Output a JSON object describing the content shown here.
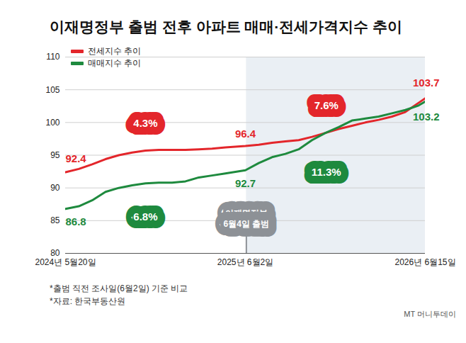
{
  "chart_data": {
    "type": "line",
    "title": "이재명정부 출범 전후 아파트 매매·전세가격지수 추이",
    "x": [
      "2024-05-20",
      "2024-06-17",
      "2024-07-15",
      "2024-08-12",
      "2024-09-09",
      "2024-10-07",
      "2024-11-04",
      "2024-12-02",
      "2024-12-30",
      "2025-01-27",
      "2025-02-24",
      "2025-03-24",
      "2025-04-21",
      "2025-06-02",
      "2025-06-30",
      "2025-07-28",
      "2025-08-25",
      "2025-09-22",
      "2025-10-20",
      "2025-11-17",
      "2025-12-15",
      "2026-01-12",
      "2026-02-09",
      "2026-03-09",
      "2026-04-06",
      "2026-05-04",
      "2026-06-01",
      "2026-06-15"
    ],
    "series": [
      {
        "name": "전세지수 추이",
        "color": "#e3262b",
        "values": [
          92.4,
          92.9,
          93.6,
          94.4,
          95.0,
          95.4,
          95.7,
          95.8,
          95.8,
          95.8,
          95.9,
          96.0,
          96.2,
          96.4,
          96.6,
          96.9,
          97.1,
          97.3,
          97.8,
          98.4,
          99.0,
          99.5,
          100.0,
          100.4,
          100.9,
          101.6,
          103.0,
          103.7
        ]
      },
      {
        "name": "매매지수 추이",
        "color": "#1e8a3e",
        "values": [
          86.8,
          87.2,
          88.1,
          89.4,
          90.0,
          90.4,
          90.7,
          90.8,
          90.8,
          91.0,
          91.6,
          91.9,
          92.2,
          92.7,
          93.8,
          94.7,
          95.2,
          95.9,
          97.3,
          98.4,
          99.3,
          100.3,
          100.6,
          100.9,
          101.4,
          101.9,
          102.6,
          103.2
        ]
      }
    ],
    "xlim": [
      "2024-05-20",
      "2026-06-15"
    ],
    "xticks": [
      {
        "value": "2024-05-20",
        "label": "2024년 5월20일"
      },
      {
        "value": "2025-06-02",
        "label": "2025년 6월2일"
      },
      {
        "value": "2026-06-15",
        "label": "2026년 6월15일"
      }
    ],
    "ylim": [
      80,
      110
    ],
    "yticks": [
      80,
      85,
      90,
      95,
      100,
      105,
      110
    ],
    "grid": true,
    "legend": "top-left",
    "point_labels": [
      {
        "text": "92.4",
        "x": "2024-05-20",
        "y": 94.4,
        "color": "#e3262b"
      },
      {
        "text": "86.8",
        "x": "2024-05-20",
        "y": 84.8,
        "color": "#1e8a3e"
      },
      {
        "text": "96.4",
        "x": "2025-06-02",
        "y": 98.2,
        "color": "#e3262b"
      },
      {
        "text": "92.7",
        "x": "2025-06-02",
        "y": 90.6,
        "color": "#1e8a3e"
      },
      {
        "text": "103.7",
        "x": "2026-06-15",
        "y": 106.0,
        "color": "#e3262b"
      },
      {
        "text": "103.2",
        "x": "2026-06-15",
        "y": 100.8,
        "color": "#1e8a3e"
      }
    ],
    "badges": [
      {
        "text": "4.3%",
        "x": "2024-11-04",
        "y": 99.8,
        "color": "#e3262b"
      },
      {
        "text": "6.8%",
        "x": "2024-11-04",
        "y": 85.6,
        "color": "#1e8a3e"
      },
      {
        "text": "7.6%",
        "x": "2025-11-19",
        "y": 102.6,
        "color": "#e3262b"
      },
      {
        "text": "11.3%",
        "x": "2025-11-19",
        "y": 92.4,
        "color": "#1e8a3e"
      }
    ],
    "callout": {
      "text": "이재명정부\n6월4일 출범",
      "x": "2025-06-04",
      "y": 85.4,
      "color": "#8d9196"
    },
    "notes": [
      "*출범 직전 조사일(6월2일) 기준 비교",
      "*자료: 한국부동산원"
    ],
    "watermark": "MT 머니투데이"
  }
}
